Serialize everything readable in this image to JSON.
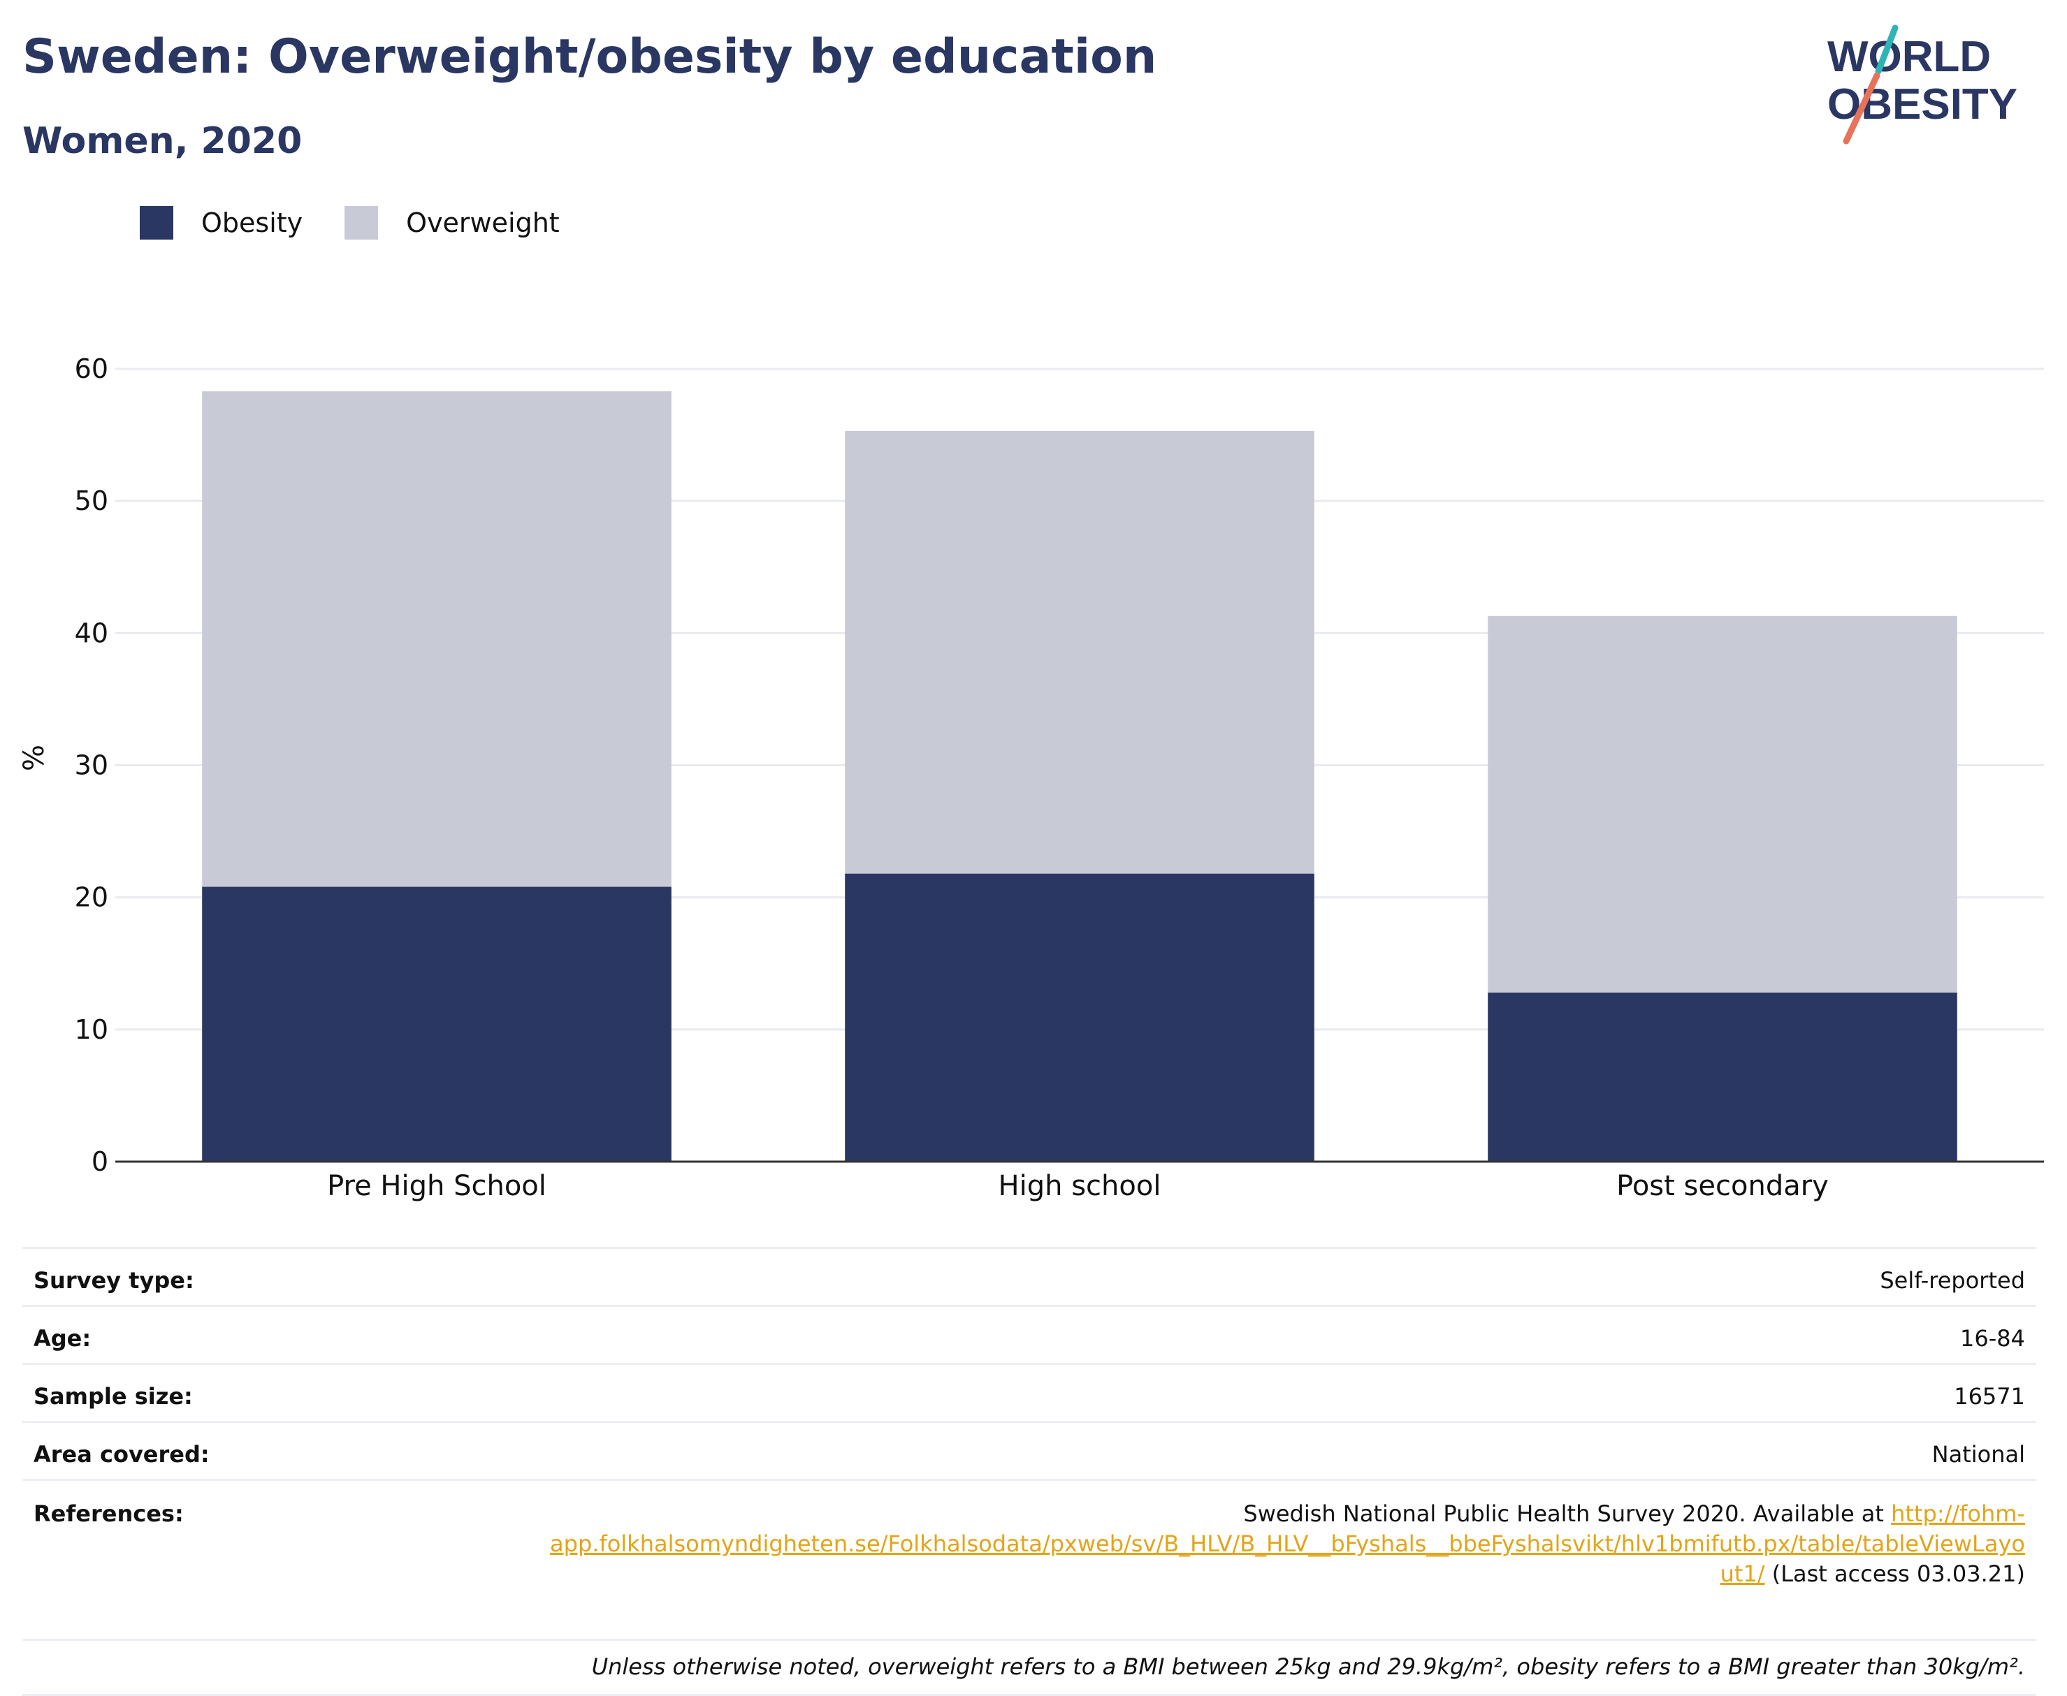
{
  "header": {
    "title": "Sweden: Overweight/obesity by education",
    "subtitle": "Women, 2020"
  },
  "logo": {
    "line1": "WORLD",
    "line2": "OBESITY",
    "accent_colors": [
      "#2fb4b5",
      "#e8735a"
    ]
  },
  "legend": [
    {
      "label": "Obesity",
      "color": "#2a3763"
    },
    {
      "label": "Overweight",
      "color": "#c8cbd6"
    }
  ],
  "chart_data": {
    "type": "bar",
    "stacked": true,
    "categories": [
      "Pre High School",
      "High school",
      "Post secondary"
    ],
    "series": [
      {
        "name": "Obesity",
        "values": [
          20.8,
          21.8,
          12.8
        ],
        "color": "#2a3763"
      },
      {
        "name": "Overweight",
        "values": [
          37.5,
          33.5,
          28.5
        ],
        "color": "#c8cbd6"
      }
    ],
    "totals": [
      58.3,
      55.3,
      41.3
    ],
    "ylabel": "%",
    "ylim": [
      0,
      60
    ],
    "yticks": [
      0,
      10,
      20,
      30,
      40,
      50,
      60
    ],
    "grid": true,
    "legend_position": "top-left"
  },
  "info": {
    "survey_type_label": "Survey type:",
    "survey_type_value": "Self-reported",
    "age_label": "Age:",
    "age_value": "16-84",
    "sample_size_label": "Sample size:",
    "sample_size_value": "16571",
    "area_label": "Area covered:",
    "area_value": "National",
    "references_label": "References:",
    "references_text": "Swedish National Public Health Survey 2020. Available at",
    "references_link_1": "http://fohm-",
    "references_link_2": "app.folkhalsomyndigheten.se/Folkhalsodata/pxweb/sv/B_HLV/B_HLV__bFyshals__bbeFyshalsvikt/hlv1bmifutb.px/table/tableViewLayo",
    "references_link_3": "ut1/",
    "references_suffix": "(Last access 03.03.21)",
    "note": "Unless otherwise noted, overweight refers to a BMI between 25kg and 29.9kg/m², obesity refers to a BMI greater than 30kg/m²."
  }
}
